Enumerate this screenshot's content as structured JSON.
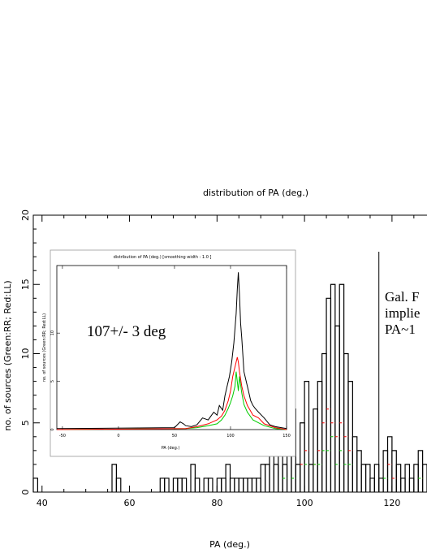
{
  "chart_data": [
    {
      "type": "histogram",
      "title": "distribution of PA (deg.)",
      "xlabel": "PA (deg.)",
      "ylabel": "no. of sources (Green:RR; Red:LL)",
      "xlim": [
        38,
        128
      ],
      "ylim": [
        0,
        20
      ],
      "x_ticks": [
        40,
        60,
        80,
        100,
        120
      ],
      "y_ticks": [
        0,
        5,
        10,
        15,
        20
      ],
      "bin_width": 1,
      "series": [
        {
          "color": "#000000",
          "bins": [
            [
              38,
              1
            ],
            [
              56,
              2
            ],
            [
              57,
              1
            ],
            [
              67,
              1
            ],
            [
              68,
              1
            ],
            [
              70,
              1
            ],
            [
              71,
              1
            ],
            [
              72,
              1
            ],
            [
              74,
              2
            ],
            [
              75,
              1
            ],
            [
              77,
              1
            ],
            [
              78,
              1
            ],
            [
              80,
              1
            ],
            [
              81,
              1
            ],
            [
              82,
              2
            ],
            [
              83,
              1
            ],
            [
              84,
              1
            ],
            [
              85,
              1
            ],
            [
              86,
              1
            ],
            [
              87,
              1
            ],
            [
              88,
              1
            ],
            [
              89,
              1
            ],
            [
              90,
              2
            ],
            [
              91,
              2
            ],
            [
              92,
              3
            ],
            [
              93,
              2
            ],
            [
              94,
              3
            ],
            [
              95,
              2
            ],
            [
              96,
              4
            ],
            [
              97,
              6
            ],
            [
              98,
              2
            ],
            [
              99,
              5
            ],
            [
              100,
              8
            ],
            [
              101,
              2
            ],
            [
              102,
              6
            ],
            [
              103,
              8
            ],
            [
              104,
              10
            ],
            [
              105,
              14
            ],
            [
              106,
              15
            ],
            [
              107,
              12
            ],
            [
              108,
              15
            ],
            [
              109,
              10
            ],
            [
              110,
              8
            ],
            [
              111,
              4
            ],
            [
              112,
              3
            ],
            [
              113,
              2
            ],
            [
              114,
              2
            ],
            [
              115,
              1
            ],
            [
              116,
              2
            ],
            [
              117,
              1
            ],
            [
              118,
              3
            ],
            [
              119,
              4
            ],
            [
              120,
              3
            ],
            [
              121,
              2
            ],
            [
              122,
              1
            ],
            [
              123,
              2
            ],
            [
              124,
              1
            ],
            [
              125,
              2
            ],
            [
              126,
              3
            ],
            [
              127,
              2
            ]
          ]
        },
        {
          "color": "#ff0000",
          "bins": [
            [
              99,
              2
            ],
            [
              100,
              3
            ],
            [
              102,
              2
            ],
            [
              103,
              3
            ],
            [
              104,
              5
            ],
            [
              105,
              6
            ],
            [
              106,
              5
            ],
            [
              107,
              4
            ],
            [
              108,
              5
            ],
            [
              109,
              4
            ],
            [
              110,
              3
            ],
            [
              119,
              2
            ],
            [
              120,
              1
            ],
            [
              126,
              1
            ]
          ]
        },
        {
          "color": "#00cc00",
          "bins": [
            [
              95,
              1
            ],
            [
              97,
              1
            ],
            [
              100,
              2
            ],
            [
              102,
              2
            ],
            [
              103,
              2
            ],
            [
              104,
              3
            ],
            [
              105,
              3
            ],
            [
              106,
              4
            ],
            [
              107,
              2
            ],
            [
              108,
              3
            ],
            [
              109,
              2
            ],
            [
              110,
              2
            ],
            [
              118,
              1
            ],
            [
              126,
              1
            ]
          ]
        }
      ],
      "marker_x": 117,
      "annotation_lines": [
        "Gal. F",
        "implie",
        "PA~1"
      ]
    },
    {
      "type": "line",
      "title": "distribution of PA (deg.)    [smoothing width :    1.0 ]",
      "xlabel": "PA (deg.)",
      "ylabel": "no. of sources (Green:RR; Red:LL)",
      "xlim": [
        -55,
        150
      ],
      "ylim": [
        0,
        17
      ],
      "x_ticks": [
        -50,
        0,
        50,
        100,
        150
      ],
      "y_ticks": [
        0,
        5,
        10
      ],
      "annotation": "107+/- 3 deg",
      "series": [
        {
          "color": "#000000",
          "x": [
            -55,
            50,
            55,
            58,
            60,
            65,
            70,
            75,
            80,
            85,
            88,
            90,
            93,
            95,
            97,
            99,
            101,
            103,
            105,
            106,
            107,
            108,
            109,
            110,
            112,
            114,
            116,
            118,
            120,
            122,
            125,
            130,
            135,
            140,
            150
          ],
          "y": [
            0.1,
            0.2,
            0.8,
            0.6,
            0.4,
            0.3,
            0.5,
            1.2,
            1.0,
            1.8,
            1.5,
            2.5,
            2.0,
            3.5,
            4.5,
            5.5,
            7.0,
            9.0,
            12.0,
            14.5,
            16.3,
            14.0,
            11.0,
            9.5,
            6.0,
            5.0,
            4.0,
            3.0,
            2.5,
            2.2,
            1.8,
            1.2,
            0.5,
            0.3,
            0.1
          ]
        },
        {
          "color": "#ff0000",
          "x": [
            -55,
            60,
            70,
            80,
            88,
            92,
            95,
            98,
            100,
            102,
            104,
            106,
            107,
            108,
            110,
            112,
            115,
            120,
            125,
            130,
            140,
            150
          ],
          "y": [
            0,
            0.1,
            0.3,
            0.6,
            1.0,
            1.4,
            2.0,
            3.0,
            4.0,
            5.5,
            6.5,
            7.5,
            7.0,
            6.0,
            4.5,
            3.5,
            2.5,
            1.5,
            1.2,
            0.6,
            0.2,
            0
          ]
        },
        {
          "color": "#00cc00",
          "x": [
            -55,
            60,
            70,
            80,
            88,
            92,
            95,
            98,
            100,
            102,
            104,
            105,
            106,
            107,
            108,
            110,
            112,
            115,
            120,
            125,
            130,
            140,
            150
          ],
          "y": [
            0,
            0.1,
            0.2,
            0.4,
            0.6,
            1.0,
            1.5,
            2.2,
            2.8,
            3.5,
            4.5,
            6.0,
            5.0,
            4.0,
            5.5,
            3.8,
            2.6,
            1.8,
            1.0,
            0.7,
            0.4,
            0.1,
            0
          ]
        }
      ]
    }
  ]
}
